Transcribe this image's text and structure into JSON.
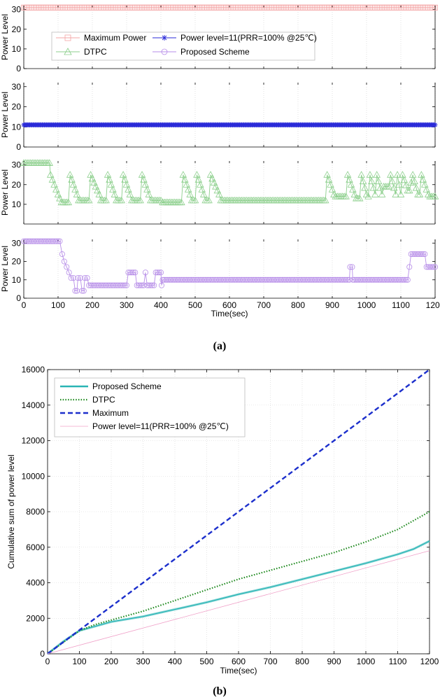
{
  "chart_data": [
    {
      "type": "line",
      "panel": "a-1",
      "ylabel": "Power Level",
      "xlim": [
        0,
        1200
      ],
      "ylim": [
        0,
        32
      ],
      "yticks": [
        0,
        10,
        20,
        30
      ],
      "series": [
        {
          "name": "Maximum Power",
          "color": "#f4a6a6",
          "marker": "square",
          "points": [
            [
              0,
              31
            ],
            [
              1200,
              31
            ]
          ]
        }
      ],
      "legend": [
        {
          "label": "Maximum Power",
          "color": "#f4a6a6",
          "marker": "square"
        },
        {
          "label": "DTPC",
          "color": "#8ccf8c",
          "marker": "triangle"
        },
        {
          "label": "Power level=11(PRR=100% @25℃)",
          "color": "#2b2bd8",
          "marker": "star"
        },
        {
          "label": "Proposed Scheme",
          "color": "#b78ee8",
          "marker": "circle"
        }
      ]
    },
    {
      "type": "line",
      "panel": "a-2",
      "ylabel": "Power Level",
      "xlim": [
        0,
        1200
      ],
      "ylim": [
        0,
        32
      ],
      "yticks": [
        0,
        10,
        20,
        30
      ],
      "series": [
        {
          "name": "Power level=11(PRR=100% @25℃)",
          "color": "#2b2bd8",
          "marker": "star",
          "points": [
            [
              0,
              11
            ],
            [
              1200,
              11
            ]
          ]
        }
      ]
    },
    {
      "type": "line",
      "panel": "a-3",
      "ylabel": "Power Level",
      "xlim": [
        0,
        1200
      ],
      "ylim": [
        0,
        32
      ],
      "yticks": [
        10,
        20,
        30
      ],
      "series": [
        {
          "name": "DTPC",
          "color": "#8ccf8c",
          "marker": "triangle",
          "points": [
            [
              0,
              31
            ],
            [
              75,
              31
            ],
            [
              78,
              25
            ],
            [
              100,
              15
            ],
            [
              110,
              11
            ],
            [
              125,
              11
            ],
            [
              130,
              11
            ],
            [
              135,
              25
            ],
            [
              155,
              15
            ],
            [
              160,
              12
            ],
            [
              180,
              12
            ],
            [
              190,
              12
            ],
            [
              195,
              25
            ],
            [
              220,
              15
            ],
            [
              225,
              12
            ],
            [
              240,
              12
            ],
            [
              245,
              25
            ],
            [
              265,
              15
            ],
            [
              270,
              12
            ],
            [
              285,
              12
            ],
            [
              290,
              25
            ],
            [
              310,
              15
            ],
            [
              315,
              12
            ],
            [
              340,
              12
            ],
            [
              345,
              25
            ],
            [
              365,
              15
            ],
            [
              370,
              12
            ],
            [
              385,
              12
            ],
            [
              390,
              12
            ],
            [
              400,
              12
            ],
            [
              405,
              11
            ],
            [
              445,
              11
            ],
            [
              450,
              11
            ],
            [
              460,
              11
            ],
            [
              465,
              25
            ],
            [
              485,
              15
            ],
            [
              490,
              12
            ],
            [
              500,
              12
            ],
            [
              505,
              25
            ],
            [
              525,
              15
            ],
            [
              530,
              12
            ],
            [
              540,
              12
            ],
            [
              545,
              25
            ],
            [
              570,
              15
            ],
            [
              575,
              12
            ],
            [
              600,
              12
            ],
            [
              880,
              12
            ],
            [
              885,
              25
            ],
            [
              905,
              15
            ],
            [
              910,
              14
            ],
            [
              920,
              14
            ],
            [
              940,
              14
            ],
            [
              945,
              25
            ],
            [
              965,
              15
            ],
            [
              970,
              13
            ],
            [
              980,
              13
            ],
            [
              985,
              25
            ],
            [
              1000,
              15
            ],
            [
              1005,
              14
            ],
            [
              1010,
              25
            ],
            [
              1025,
              15
            ],
            [
              1030,
              25
            ],
            [
              1045,
              15
            ],
            [
              1050,
              19
            ],
            [
              1065,
              19
            ],
            [
              1070,
              25
            ],
            [
              1085,
              15
            ],
            [
              1090,
              25
            ],
            [
              1100,
              15
            ],
            [
              1105,
              25
            ],
            [
              1120,
              17
            ],
            [
              1125,
              17
            ],
            [
              1135,
              25
            ],
            [
              1150,
              15
            ],
            [
              1155,
              15
            ],
            [
              1160,
              25
            ],
            [
              1180,
              15
            ],
            [
              1185,
              14
            ],
            [
              1200,
              14
            ]
          ]
        }
      ]
    },
    {
      "type": "line",
      "panel": "a-4",
      "ylabel": "Power Level",
      "xlabel": "Time(sec)",
      "xlim": [
        0,
        1200
      ],
      "ylim": [
        0,
        32
      ],
      "yticks": [
        0,
        10,
        20,
        30
      ],
      "xticks": [
        0,
        100,
        200,
        300,
        400,
        500,
        600,
        700,
        800,
        900,
        1000,
        1100,
        1200
      ],
      "series": [
        {
          "name": "Proposed Scheme",
          "color": "#b78ee8",
          "marker": "circle",
          "points": [
            [
              0,
              31
            ],
            [
              105,
              31
            ],
            [
              112,
              24
            ],
            [
              118,
              20
            ],
            [
              125,
              17
            ],
            [
              132,
              14
            ],
            [
              138,
              11
            ],
            [
              145,
              11
            ],
            [
              150,
              4
            ],
            [
              155,
              4
            ],
            [
              158,
              11
            ],
            [
              165,
              11
            ],
            [
              170,
              4
            ],
            [
              175,
              4
            ],
            [
              178,
              11
            ],
            [
              185,
              11
            ],
            [
              190,
              7
            ],
            [
              300,
              7
            ],
            [
              305,
              14
            ],
            [
              325,
              14
            ],
            [
              330,
              7
            ],
            [
              350,
              7
            ],
            [
              355,
              14
            ],
            [
              360,
              7
            ],
            [
              380,
              7
            ],
            [
              385,
              14
            ],
            [
              400,
              14
            ],
            [
              402,
              7
            ],
            [
              405,
              10
            ],
            [
              950,
              10
            ],
            [
              952,
              17
            ],
            [
              958,
              17
            ],
            [
              960,
              10
            ],
            [
              1120,
              10
            ],
            [
              1125,
              17
            ],
            [
              1130,
              24
            ],
            [
              1170,
              24
            ],
            [
              1175,
              17
            ],
            [
              1200,
              17
            ]
          ]
        }
      ]
    },
    {
      "type": "line",
      "panel": "b",
      "ylabel": "Cumulative sum of power level",
      "xlabel": "Time(sec)",
      "xlim": [
        0,
        1200
      ],
      "ylim": [
        0,
        16000
      ],
      "xticks": [
        0,
        100,
        200,
        300,
        400,
        500,
        600,
        700,
        800,
        900,
        1000,
        1100,
        1200
      ],
      "yticks": [
        0,
        2000,
        4000,
        6000,
        8000,
        10000,
        12000,
        14000,
        16000
      ],
      "grid": true,
      "legend_position": "top-left",
      "series": [
        {
          "name": "Proposed Scheme",
          "color": "#2ab5b5",
          "style": "solid-band",
          "points": [
            [
              0,
              0
            ],
            [
              50,
              700
            ],
            [
              100,
              1300
            ],
            [
              150,
              1550
            ],
            [
              200,
              1800
            ],
            [
              300,
              2100
            ],
            [
              400,
              2500
            ],
            [
              500,
              2900
            ],
            [
              600,
              3350
            ],
            [
              700,
              3750
            ],
            [
              800,
              4200
            ],
            [
              900,
              4650
            ],
            [
              1000,
              5100
            ],
            [
              1100,
              5600
            ],
            [
              1150,
              5900
            ],
            [
              1200,
              6350
            ]
          ]
        },
        {
          "name": "DTPC",
          "color": "#1f8a1f",
          "style": "dotted",
          "points": [
            [
              0,
              0
            ],
            [
              50,
              650
            ],
            [
              100,
              1300
            ],
            [
              150,
              1650
            ],
            [
              200,
              1900
            ],
            [
              300,
              2400
            ],
            [
              400,
              3000
            ],
            [
              500,
              3600
            ],
            [
              600,
              4200
            ],
            [
              700,
              4700
            ],
            [
              800,
              5200
            ],
            [
              900,
              5700
            ],
            [
              1000,
              6300
            ],
            [
              1100,
              7000
            ],
            [
              1200,
              8000
            ]
          ]
        },
        {
          "name": "Maximum",
          "color": "#1c2fcc",
          "style": "dashed",
          "points": [
            [
              0,
              0
            ],
            [
              1200,
              16000
            ]
          ]
        },
        {
          "name": "Power level=11(PRR=100% @25℃)",
          "color": "#f0a0c8",
          "style": "solid-thin",
          "points": [
            [
              0,
              0
            ],
            [
              1200,
              5800
            ]
          ]
        }
      ]
    }
  ],
  "captions": {
    "a": "(a)",
    "b": "(b)"
  }
}
